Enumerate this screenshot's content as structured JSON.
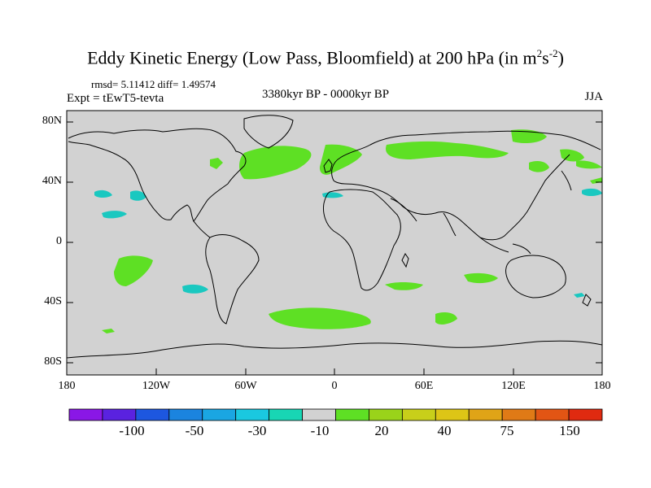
{
  "title": {
    "main": "Eddy Kinetic Energy (Low Pass, Bloomfield) at 200 hPa (in m",
    "sup1": "2",
    "mid": "s",
    "sup2": "-2",
    "end": ")"
  },
  "stats": "rmsd= 5.11412 diff= 1.49574",
  "experiment": "Expt = tEwT5-tevta",
  "period": "3380kyr BP - 0000kyr BP",
  "season": "JJA",
  "lat_labels": [
    "80N",
    "40N",
    "0",
    "40S",
    "80S"
  ],
  "lon_labels": [
    "180",
    "120W",
    "60W",
    "0",
    "60E",
    "120E",
    "180"
  ],
  "colorbar": {
    "colors": [
      "#8a17e6",
      "#5a22e0",
      "#1d57e0",
      "#1b84df",
      "#1aa6e2",
      "#1ac8e0",
      "#18d6b4",
      "#d2d2d2",
      "#5ee024",
      "#9ad31a",
      "#c8cf1a",
      "#ddc516",
      "#e0a417",
      "#e07a16",
      "#e25514",
      "#e02a10"
    ],
    "labels": [
      "-100",
      "-50",
      "-30",
      "-10",
      "20",
      "40",
      "75",
      "150"
    ]
  },
  "colors": {
    "ocean_land": "#d2d2d2",
    "positive": "#5ee024",
    "negative": "#1ac8c0",
    "coast": "#000000"
  }
}
